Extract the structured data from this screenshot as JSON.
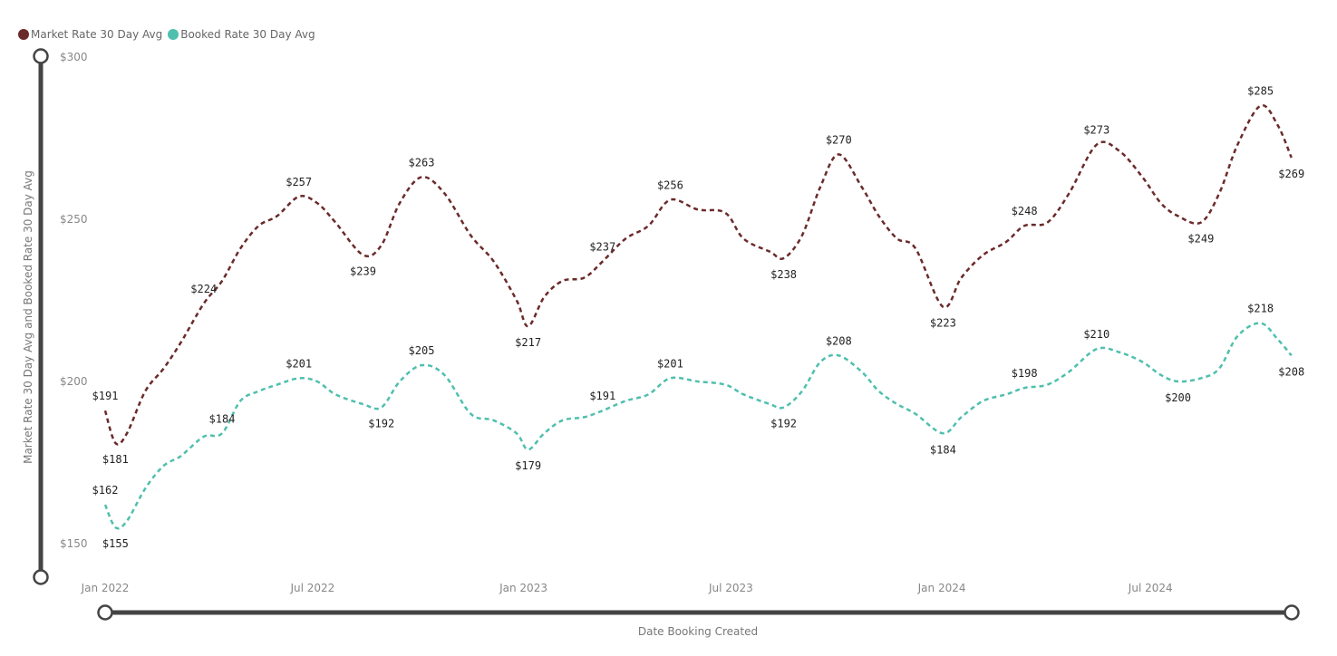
{
  "chart_data": {
    "type": "line",
    "xlabel": "Date Booking Created",
    "ylabel": "Market Rate 30 Day Avg and Booked Rate 30 Day Avg",
    "ylim": [
      150,
      300
    ],
    "y_ticks": [
      "$150",
      "$200",
      "$250",
      "$300"
    ],
    "y_tick_values": [
      150,
      200,
      250,
      300
    ],
    "x_ticks": [
      "Jan 2022",
      "Jul 2022",
      "Jan 2023",
      "Jul 2023",
      "Jan 2024",
      "Jul 2024"
    ],
    "x_tick_dates": [
      "2022-01-01",
      "2022-07-01",
      "2023-01-01",
      "2023-07-01",
      "2024-01-01",
      "2024-07-01"
    ],
    "grid": false,
    "legend_position": "top-left",
    "x": [
      "2022-01-01",
      "2022-01-10",
      "2022-01-20",
      "2022-02-05",
      "2022-02-21",
      "2022-03-08",
      "2022-03-28",
      "2022-04-13",
      "2022-04-29",
      "2022-05-15",
      "2022-05-31",
      "2022-06-19",
      "2022-07-05",
      "2022-07-21",
      "2022-08-14",
      "2022-08-30",
      "2022-09-15",
      "2022-10-04",
      "2022-10-24",
      "2022-11-16",
      "2022-12-06",
      "2022-12-26",
      "2023-01-05",
      "2023-01-19",
      "2023-02-04",
      "2023-02-23",
      "2023-03-11",
      "2023-03-31",
      "2023-04-20",
      "2023-05-09",
      "2023-06-02",
      "2023-06-26",
      "2023-07-12",
      "2023-08-04",
      "2023-08-16",
      "2023-09-01",
      "2023-09-17",
      "2023-10-03",
      "2023-10-23",
      "2023-11-07",
      "2023-11-23",
      "2023-12-09",
      "2024-01-02",
      "2024-01-18",
      "2024-02-06",
      "2024-02-26",
      "2024-03-13",
      "2024-04-02",
      "2024-04-21",
      "2024-05-15",
      "2024-06-04",
      "2024-06-24",
      "2024-07-10",
      "2024-07-25",
      "2024-08-14",
      "2024-08-30",
      "2024-09-15",
      "2024-10-05",
      "2024-10-20",
      "2024-11-01"
    ],
    "series": [
      {
        "name": "Market Rate 30 Day Avg",
        "color": "#6b2a2a",
        "values": [
          191,
          181,
          184,
          197,
          204,
          212,
          224,
          231,
          241,
          248,
          251,
          257,
          255,
          249,
          239,
          242,
          255,
          263,
          258,
          245,
          237,
          225,
          217,
          226,
          231,
          232,
          237,
          244,
          248,
          256,
          253,
          252,
          244,
          240,
          238,
          245,
          260,
          270,
          260,
          251,
          244,
          241,
          223,
          232,
          239,
          243,
          248,
          249,
          258,
          273,
          271,
          263,
          255,
          251,
          249,
          258,
          273,
          285,
          279,
          269
        ],
        "labels": [
          [
            0,
            "above"
          ],
          [
            1,
            "below"
          ],
          [
            6,
            "above"
          ],
          [
            11,
            "above"
          ],
          [
            14,
            "below"
          ],
          [
            17,
            "above"
          ],
          [
            22,
            "below"
          ],
          [
            26,
            "above"
          ],
          [
            29,
            "above"
          ],
          [
            34,
            "below"
          ],
          [
            37,
            "above"
          ],
          [
            42,
            "below"
          ],
          [
            46,
            "above"
          ],
          [
            49,
            "above"
          ],
          [
            54,
            "below"
          ],
          [
            57,
            "above"
          ],
          [
            59,
            "below"
          ]
        ]
      },
      {
        "name": "Booked Rate 30 Day Avg",
        "color": "#4fbfae",
        "values": [
          162,
          155,
          157,
          167,
          174,
          177,
          183,
          184,
          194,
          197,
          199,
          201,
          200,
          196,
          193,
          192,
          200,
          205,
          202,
          190,
          188,
          184,
          179,
          184,
          188,
          189,
          191,
          194,
          196,
          201,
          200,
          199,
          196,
          193,
          192,
          197,
          206,
          208,
          203,
          197,
          193,
          190,
          184,
          189,
          194,
          196,
          198,
          199,
          203,
          210,
          209,
          206,
          202,
          200,
          201,
          204,
          214,
          218,
          213,
          208
        ],
        "labels": [
          [
            0,
            "above"
          ],
          [
            1,
            "below"
          ],
          [
            7,
            "above"
          ],
          [
            11,
            "above"
          ],
          [
            15,
            "below"
          ],
          [
            17,
            "above"
          ],
          [
            22,
            "below"
          ],
          [
            26,
            "above"
          ],
          [
            29,
            "above"
          ],
          [
            34,
            "below"
          ],
          [
            37,
            "above"
          ],
          [
            42,
            "below"
          ],
          [
            46,
            "above"
          ],
          [
            49,
            "above"
          ],
          [
            53,
            "below"
          ],
          [
            57,
            "above"
          ],
          [
            59,
            "below"
          ]
        ]
      }
    ]
  }
}
